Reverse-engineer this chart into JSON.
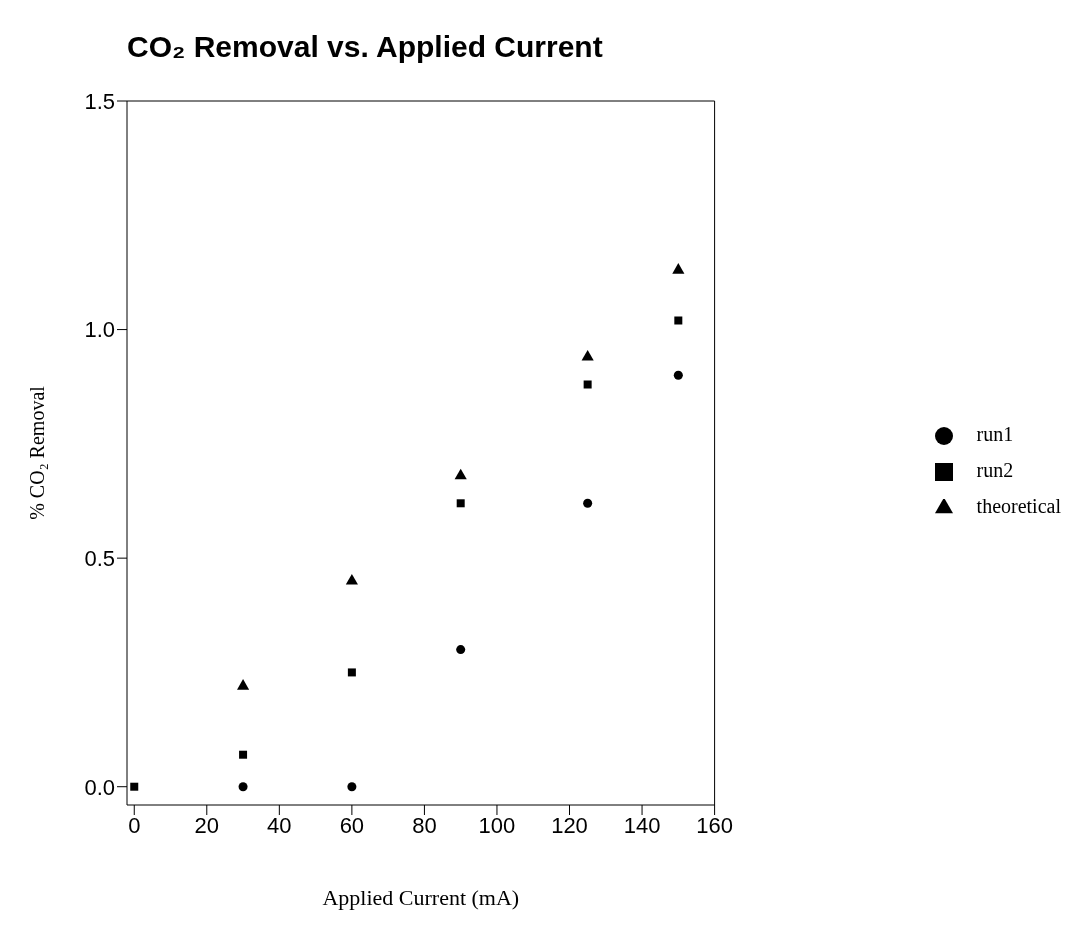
{
  "chart_data": {
    "type": "scatter",
    "title": "CO₂ Removal vs. Applied Current",
    "xlabel": "Applied Current (mA)",
    "ylabel": "% CO₂ Removal",
    "x": [
      0,
      30,
      60,
      90,
      125,
      150
    ],
    "series": [
      {
        "name": "run1",
        "color": "#000000",
        "marker": "circle",
        "values": [
          null,
          0,
          0,
          0.3,
          0.62,
          0.9
        ]
      },
      {
        "name": "run2",
        "color": "#000000",
        "marker": "square",
        "values": [
          0,
          0.07,
          0.25,
          0.62,
          0.88,
          1.02
        ]
      },
      {
        "name": "theoretical",
        "color": "#000000",
        "marker": "triangle",
        "values": [
          null,
          0.22,
          0.45,
          0.68,
          0.94,
          1.13
        ]
      }
    ],
    "xlim": [
      -2,
      160
    ],
    "xticks": [
      0,
      20,
      40,
      60,
      80,
      100,
      120,
      140,
      160
    ],
    "ylim": [
      -0.04,
      1.5
    ],
    "yticks": [
      {
        "value": 0,
        "label": "0.0"
      },
      {
        "value": 0.5,
        "label": "0.5"
      },
      {
        "value": 1,
        "label": "1.0"
      },
      {
        "value": 1.5,
        "label": "1.5"
      }
    ],
    "grid": false,
    "legend": "right"
  }
}
